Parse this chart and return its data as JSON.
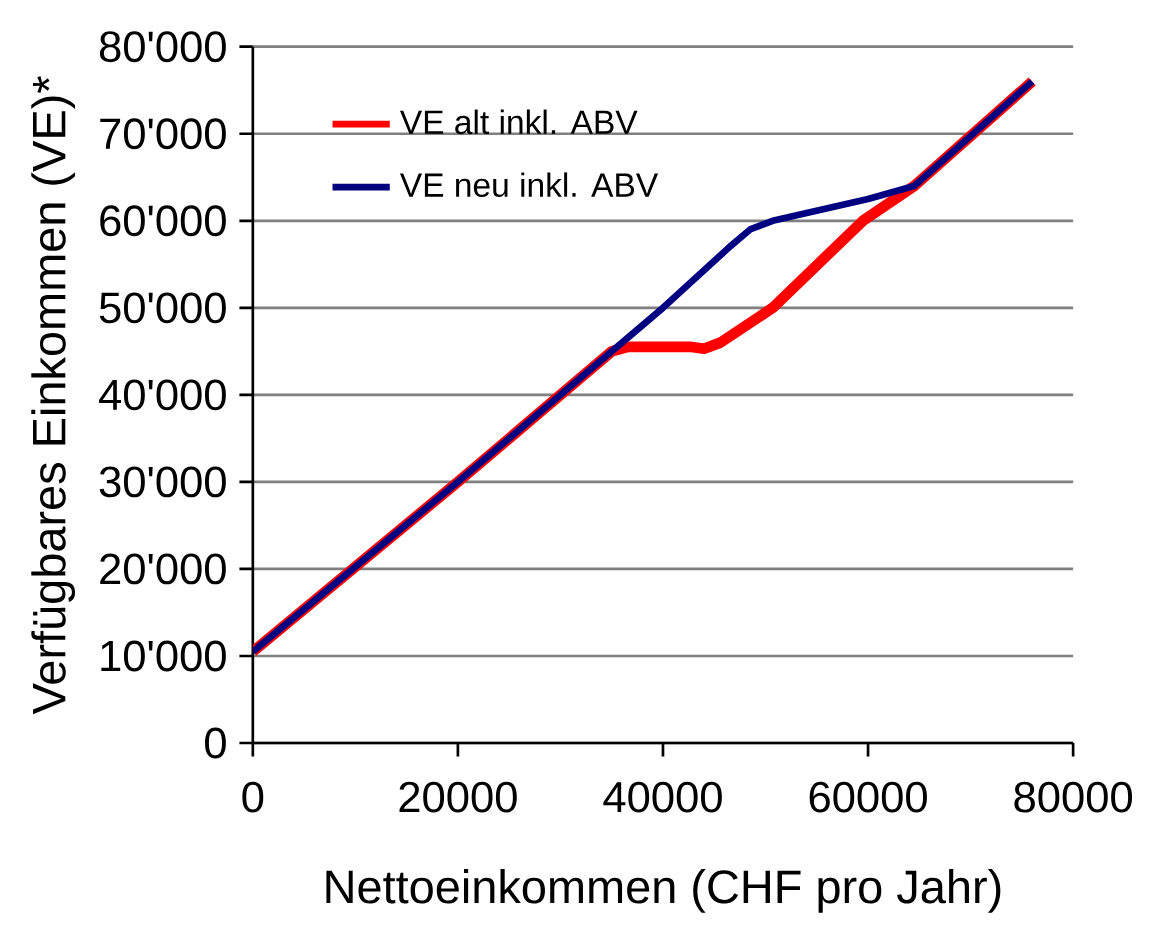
{
  "chart_data": {
    "type": "line",
    "xlabel": "Nettoeinkommen  (CHF pro Jahr)",
    "ylabel": "Verfügbares Einkommen  (VE)*",
    "series": [
      {
        "name": "VE alt inkl. ABV",
        "color": "#ff0000",
        "x": [
          0,
          20000,
          35000,
          36500,
          42800,
          44000,
          45600,
          50700,
          59500,
          64500,
          76000
        ],
        "values": [
          10500,
          30000,
          45000,
          45500,
          45500,
          45300,
          46000,
          50000,
          60000,
          64000,
          76000
        ]
      },
      {
        "name": "VE neu inkl. ABV",
        "color": "#000080",
        "x": [
          0,
          20000,
          35000,
          40000,
          46500,
          48500,
          50700,
          60000,
          64500,
          76000
        ],
        "values": [
          10500,
          30000,
          45000,
          50000,
          57000,
          59000,
          60000,
          62500,
          64000,
          76000
        ]
      }
    ],
    "xlim": [
      0,
      80000
    ],
    "xticks": [
      0,
      20000,
      40000,
      60000,
      80000
    ],
    "ylim": [
      0,
      80000
    ],
    "yticks": [
      0,
      {
        "value": 10000,
        "label": "10'000"
      },
      {
        "value": 20000,
        "label": "20'000"
      },
      {
        "value": 30000,
        "label": "30'000"
      },
      {
        "value": 40000,
        "label": "40'000"
      },
      {
        "value": 50000,
        "label": "50'000"
      },
      {
        "value": 60000,
        "label": "60'000"
      },
      {
        "value": 70000,
        "label": "70'000"
      },
      {
        "value": 80000,
        "label": "80'000"
      }
    ],
    "grid": "y",
    "legend": "top left",
    "line_style": "solid",
    "marker": "none"
  }
}
